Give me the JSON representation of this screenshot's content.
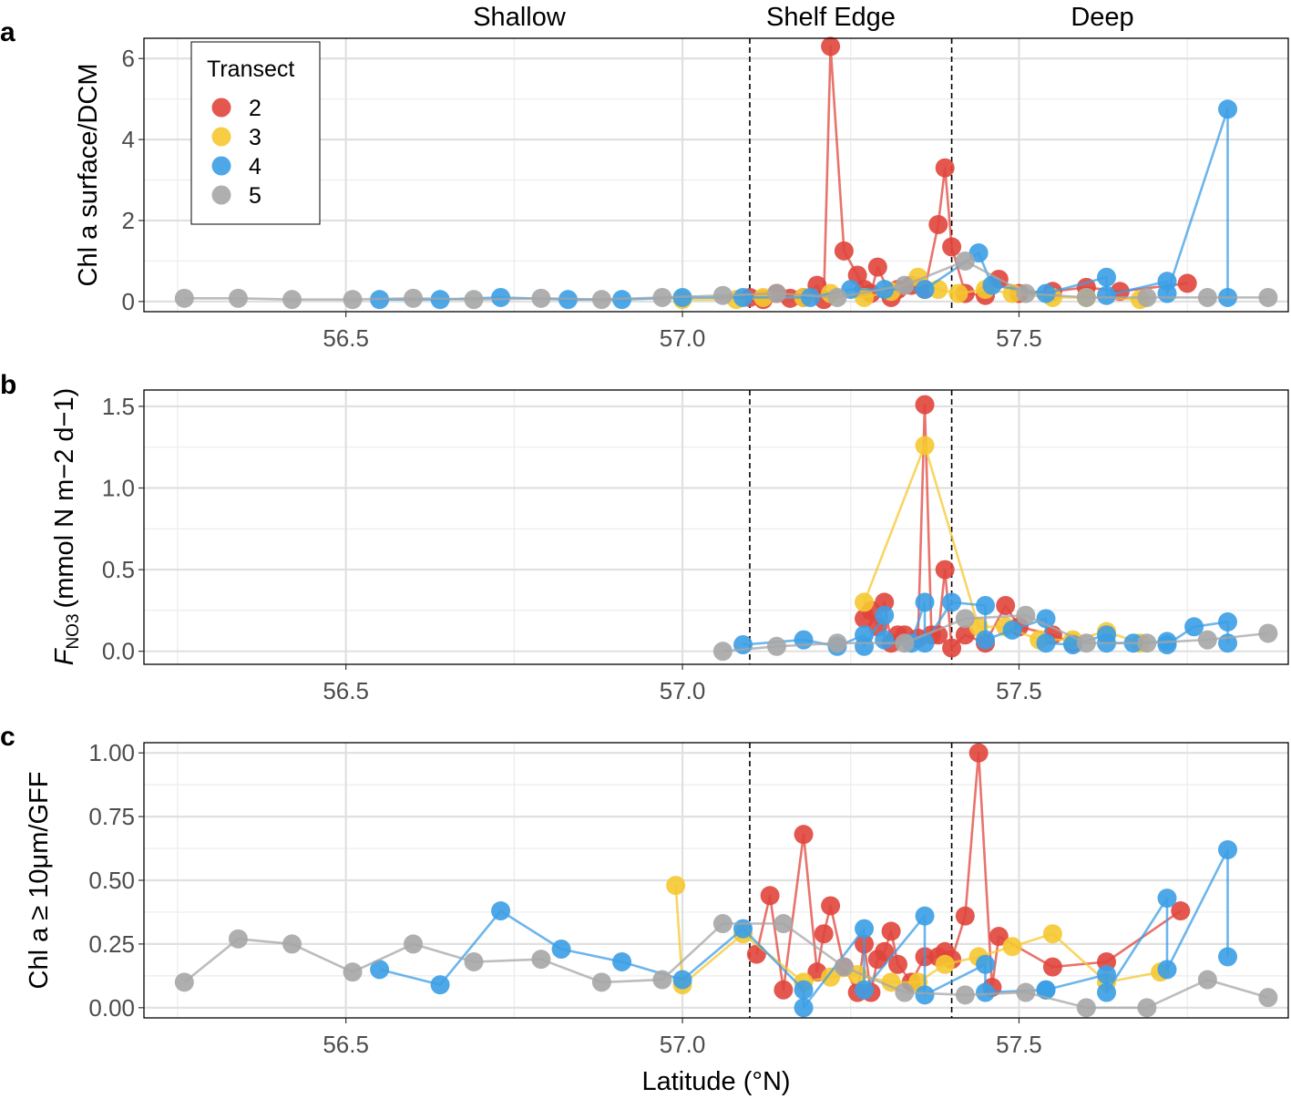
{
  "figure": {
    "regions": [
      "Shallow",
      "Shelf Edge",
      "Deep"
    ],
    "xlabel": "Latitude (°N)",
    "legend": {
      "title": "Transect",
      "placement": "top-left inside panel a"
    },
    "colors": {
      "2": "#E0453C",
      "3": "#F5C830",
      "4": "#3B9EE6",
      "5": "#A6A6A6"
    }
  },
  "chart_data": [
    {
      "type": "line",
      "panel": "a",
      "ylabel": "Chl a surface/DCM",
      "xlim": [
        56.2,
        57.9
      ],
      "ylim": [
        -0.25,
        6.5
      ],
      "xticks": [
        "56.5",
        "57.0",
        "57.5"
      ],
      "yticks": [
        "0",
        "2",
        "4",
        "6"
      ],
      "vlines": [
        57.1,
        57.4
      ],
      "grid": true,
      "series": [
        {
          "name": "2",
          "x": [
            57.1,
            57.12,
            57.14,
            57.16,
            57.18,
            57.2,
            57.21,
            57.22,
            57.24,
            57.26,
            57.27,
            57.28,
            57.29,
            57.31,
            57.32,
            57.34,
            57.36,
            57.38,
            57.39,
            57.4,
            57.42,
            57.45,
            57.47,
            57.5,
            57.55,
            57.6,
            57.65,
            57.75
          ],
          "y": [
            0.1,
            0.05,
            0.2,
            0.08,
            0.1,
            0.4,
            0.05,
            6.3,
            1.25,
            0.65,
            0.3,
            0.2,
            0.85,
            0.1,
            0.3,
            0.4,
            0.3,
            1.9,
            3.3,
            1.35,
            0.2,
            0.15,
            0.55,
            0.2,
            0.25,
            0.35,
            0.25,
            0.45
          ]
        },
        {
          "name": "3",
          "x": [
            57.0,
            57.08,
            57.12,
            57.18,
            57.22,
            57.27,
            57.31,
            57.35,
            57.38,
            57.41,
            57.45,
            57.49,
            57.55,
            57.6,
            57.68
          ],
          "y": [
            0.05,
            0.05,
            0.1,
            0.1,
            0.2,
            0.1,
            0.25,
            0.6,
            0.3,
            0.2,
            0.3,
            0.2,
            0.1,
            0.1,
            0.05
          ]
        },
        {
          "name": "4",
          "x": [
            56.55,
            56.64,
            56.73,
            56.83,
            56.91,
            57.0,
            57.09,
            57.19,
            57.25,
            57.3,
            57.36,
            57.44,
            57.46,
            57.54,
            57.63,
            57.63,
            57.72,
            57.72,
            57.81,
            57.81
          ],
          "y": [
            0.05,
            0.05,
            0.1,
            0.05,
            0.05,
            0.1,
            0.1,
            0.1,
            0.3,
            0.3,
            0.3,
            1.2,
            0.4,
            0.2,
            0.6,
            0.15,
            0.5,
            0.2,
            4.75,
            0.1
          ]
        },
        {
          "name": "5",
          "x": [
            56.26,
            56.34,
            56.42,
            56.51,
            56.6,
            56.69,
            56.79,
            56.88,
            56.97,
            57.06,
            57.14,
            57.23,
            57.33,
            57.42,
            57.51,
            57.6,
            57.69,
            57.78,
            57.87
          ],
          "y": [
            0.08,
            0.08,
            0.05,
            0.05,
            0.08,
            0.05,
            0.08,
            0.05,
            0.1,
            0.15,
            0.2,
            0.1,
            0.4,
            1.0,
            0.2,
            0.1,
            0.1,
            0.1,
            0.1
          ]
        }
      ]
    },
    {
      "type": "line",
      "panel": "b",
      "ylabel_main": "F",
      "ylabel_sub": "NO3",
      "ylabel_unit": "(mmol N m−2 d−1)",
      "xlim": [
        56.2,
        57.9
      ],
      "ylim": [
        -0.08,
        1.6
      ],
      "xticks": [
        "56.5",
        "57.0",
        "57.5"
      ],
      "yticks": [
        "0.0",
        "0.5",
        "1.0",
        "1.5"
      ],
      "vlines": [
        57.1,
        57.4
      ],
      "grid": true,
      "series": [
        {
          "name": "2",
          "x": [
            57.27,
            57.28,
            57.29,
            57.3,
            57.31,
            57.32,
            57.33,
            57.35,
            57.36,
            57.37,
            57.38,
            57.39,
            57.4,
            57.42,
            57.45,
            57.48,
            57.5,
            57.55,
            57.58
          ],
          "y": [
            0.2,
            0.25,
            0.15,
            0.3,
            0.05,
            0.1,
            0.1,
            0.08,
            1.51,
            0.1,
            0.1,
            0.5,
            0.02,
            0.1,
            0.05,
            0.28,
            0.15,
            0.1,
            0.05
          ]
        },
        {
          "name": "3",
          "x": [
            57.27,
            57.36,
            57.44,
            57.48,
            57.53,
            57.58,
            57.63,
            57.68
          ],
          "y": [
            0.3,
            1.26,
            0.15,
            0.15,
            0.07,
            0.07,
            0.12,
            0.05
          ]
        },
        {
          "name": "4",
          "x": [
            57.09,
            57.18,
            57.23,
            57.27,
            57.27,
            57.3,
            57.3,
            57.34,
            57.36,
            57.36,
            57.4,
            57.45,
            57.45,
            57.49,
            57.54,
            57.54,
            57.58,
            57.63,
            57.63,
            57.67,
            57.72,
            57.72,
            57.76,
            57.81,
            57.81
          ],
          "y": [
            0.04,
            0.07,
            0.03,
            0.1,
            0.03,
            0.22,
            0.07,
            0.05,
            0.3,
            0.05,
            0.3,
            0.28,
            0.07,
            0.13,
            0.2,
            0.05,
            0.04,
            0.1,
            0.05,
            0.05,
            0.06,
            0.04,
            0.15,
            0.18,
            0.05
          ]
        },
        {
          "name": "5",
          "x": [
            57.06,
            57.14,
            57.23,
            57.33,
            57.42,
            57.51,
            57.6,
            57.69,
            57.78,
            57.87
          ],
          "y": [
            0.0,
            0.03,
            0.05,
            0.05,
            0.2,
            0.22,
            0.05,
            0.05,
            0.07,
            0.11
          ]
        }
      ]
    },
    {
      "type": "line",
      "panel": "c",
      "ylabel": "Chl a ≥ 10μm/GFF",
      "xlim": [
        56.2,
        57.9
      ],
      "ylim": [
        -0.04,
        1.04
      ],
      "xticks": [
        "56.5",
        "57.0",
        "57.5"
      ],
      "yticks": [
        "0.00",
        "0.25",
        "0.50",
        "0.75",
        "1.00"
      ],
      "vlines": [
        57.1,
        57.4
      ],
      "grid": true,
      "series": [
        {
          "name": "2",
          "x": [
            57.11,
            57.13,
            57.15,
            57.18,
            57.2,
            57.21,
            57.22,
            57.24,
            57.26,
            57.27,
            57.28,
            57.29,
            57.3,
            57.31,
            57.32,
            57.34,
            57.36,
            57.38,
            57.39,
            57.4,
            57.42,
            57.44,
            57.46,
            57.47,
            57.55,
            57.63,
            57.74
          ],
          "y": [
            0.21,
            0.44,
            0.07,
            0.68,
            0.14,
            0.29,
            0.4,
            0.16,
            0.06,
            0.25,
            0.06,
            0.19,
            0.22,
            0.3,
            0.17,
            0.1,
            0.2,
            0.2,
            0.22,
            0.19,
            0.36,
            1.0,
            0.08,
            0.28,
            0.16,
            0.18,
            0.38
          ]
        },
        {
          "name": "3",
          "x": [
            56.99,
            57.0,
            57.09,
            57.18,
            57.22,
            57.26,
            57.31,
            57.35,
            57.39,
            57.44,
            57.49,
            57.55,
            57.63,
            57.71
          ],
          "y": [
            0.48,
            0.09,
            0.29,
            0.1,
            0.12,
            0.13,
            0.1,
            0.1,
            0.17,
            0.2,
            0.24,
            0.29,
            0.1,
            0.14
          ]
        },
        {
          "name": "4",
          "x": [
            56.55,
            56.64,
            56.73,
            56.82,
            56.91,
            57.0,
            57.09,
            57.18,
            57.18,
            57.27,
            57.27,
            57.36,
            57.36,
            57.45,
            57.45,
            57.54,
            57.54,
            57.63,
            57.63,
            57.72,
            57.72,
            57.81,
            57.81
          ],
          "y": [
            0.15,
            0.09,
            0.38,
            0.23,
            0.18,
            0.11,
            0.31,
            0.07,
            0.0,
            0.31,
            0.07,
            0.36,
            0.05,
            0.17,
            0.06,
            0.07,
            0.07,
            0.13,
            0.06,
            0.43,
            0.15,
            0.62,
            0.2
          ]
        },
        {
          "name": "5",
          "x": [
            56.26,
            56.34,
            56.42,
            56.51,
            56.6,
            56.69,
            56.79,
            56.88,
            56.97,
            57.06,
            57.15,
            57.24,
            57.33,
            57.42,
            57.51,
            57.6,
            57.69,
            57.78,
            57.87
          ],
          "y": [
            0.1,
            0.27,
            0.25,
            0.14,
            0.25,
            0.18,
            0.19,
            0.1,
            0.11,
            0.33,
            0.33,
            0.16,
            0.06,
            0.05,
            0.06,
            0.0,
            0.0,
            0.11,
            0.04
          ]
        }
      ]
    }
  ]
}
